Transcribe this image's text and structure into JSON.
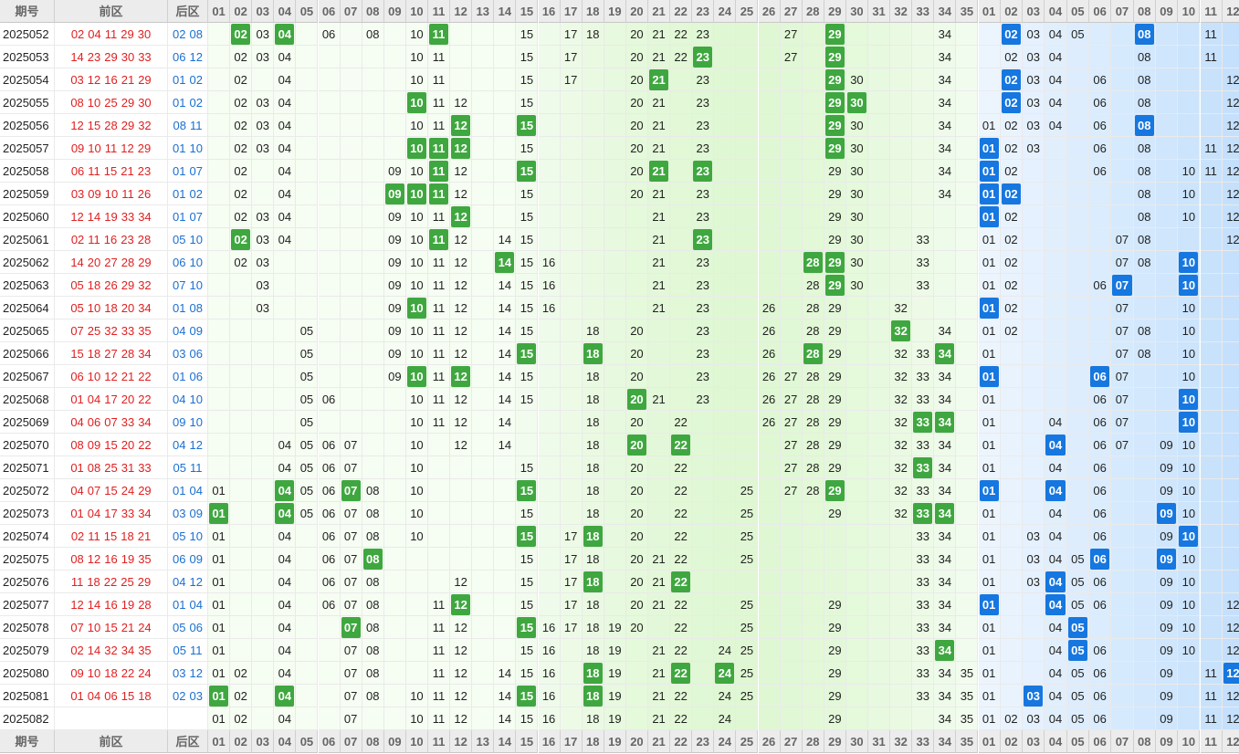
{
  "header": {
    "period_label": "期号",
    "front_label": "前区",
    "back_label": "后区",
    "front_nums": [
      "01",
      "02",
      "03",
      "04",
      "05",
      "06",
      "07",
      "08",
      "09",
      "10",
      "11",
      "12",
      "13",
      "14",
      "15",
      "16",
      "17",
      "18",
      "19",
      "20",
      "21",
      "22",
      "23",
      "24",
      "25",
      "26",
      "27",
      "28",
      "29",
      "30",
      "31",
      "32",
      "33",
      "34",
      "35"
    ],
    "back_nums": [
      "01",
      "02",
      "03",
      "04",
      "05",
      "06",
      "07",
      "08",
      "09",
      "10",
      "11",
      "12"
    ]
  },
  "colors": {
    "front_hit": "#3fa73f",
    "back_hit": "#1677e0",
    "front_text": "#e02020",
    "back_text": "#1a6fd0"
  },
  "rows": [
    {
      "period": "2025052",
      "front": [
        "02",
        "04",
        "11",
        "29",
        "30"
      ],
      "back": [
        "02",
        "08"
      ],
      "fshow": [
        "02",
        "03",
        "04",
        "06",
        "08",
        "10",
        "11",
        "15",
        "17",
        "18",
        "20",
        "21",
        "22",
        "23",
        "27",
        "29",
        "34"
      ],
      "bshow": [
        "02",
        "03",
        "04",
        "05",
        "08",
        "11"
      ]
    },
    {
      "period": "2025053",
      "front": [
        "14",
        "23",
        "29",
        "30",
        "33"
      ],
      "back": [
        "06",
        "12"
      ],
      "fshow": [
        "02",
        "03",
        "04",
        "10",
        "11",
        "15",
        "17",
        "20",
        "21",
        "22",
        "23",
        "27",
        "29",
        "34"
      ],
      "bshow": [
        "02",
        "03",
        "04",
        "08",
        "11"
      ]
    },
    {
      "period": "2025054",
      "front": [
        "03",
        "12",
        "16",
        "21",
        "29"
      ],
      "back": [
        "01",
        "02"
      ],
      "fshow": [
        "02",
        "04",
        "10",
        "11",
        "15",
        "17",
        "20",
        "21",
        "23",
        "29",
        "30",
        "34"
      ],
      "bshow": [
        "02",
        "03",
        "04",
        "06",
        "08",
        "12"
      ]
    },
    {
      "period": "2025055",
      "front": [
        "08",
        "10",
        "25",
        "29",
        "30"
      ],
      "back": [
        "01",
        "02"
      ],
      "fshow": [
        "02",
        "03",
        "04",
        "10",
        "11",
        "12",
        "15",
        "20",
        "21",
        "23",
        "29",
        "30",
        "34"
      ],
      "bshow": [
        "02",
        "03",
        "04",
        "06",
        "08",
        "12"
      ]
    },
    {
      "period": "2025056",
      "front": [
        "12",
        "15",
        "28",
        "29",
        "32"
      ],
      "back": [
        "08",
        "11"
      ],
      "fshow": [
        "02",
        "03",
        "04",
        "10",
        "11",
        "12",
        "15",
        "20",
        "21",
        "23",
        "29",
        "30",
        "34"
      ],
      "bshow": [
        "01",
        "02",
        "03",
        "04",
        "06",
        "08",
        "12"
      ]
    },
    {
      "period": "2025057",
      "front": [
        "09",
        "10",
        "11",
        "12",
        "29"
      ],
      "back": [
        "01",
        "10"
      ],
      "fshow": [
        "02",
        "03",
        "04",
        "10",
        "11",
        "12",
        "15",
        "20",
        "21",
        "23",
        "29",
        "30",
        "34"
      ],
      "bshow": [
        "01",
        "02",
        "03",
        "06",
        "08",
        "11",
        "12"
      ]
    },
    {
      "period": "2025058",
      "front": [
        "06",
        "11",
        "15",
        "21",
        "23"
      ],
      "back": [
        "01",
        "07"
      ],
      "fshow": [
        "02",
        "04",
        "09",
        "10",
        "11",
        "12",
        "15",
        "20",
        "21",
        "23",
        "29",
        "30",
        "34"
      ],
      "bshow": [
        "01",
        "02",
        "06",
        "08",
        "10",
        "11",
        "12"
      ]
    },
    {
      "period": "2025059",
      "front": [
        "03",
        "09",
        "10",
        "11",
        "26"
      ],
      "back": [
        "01",
        "02"
      ],
      "fshow": [
        "02",
        "04",
        "09",
        "10",
        "11",
        "12",
        "15",
        "20",
        "21",
        "23",
        "29",
        "30",
        "34"
      ],
      "bshow": [
        "01",
        "02",
        "08",
        "10",
        "12"
      ]
    },
    {
      "period": "2025060",
      "front": [
        "12",
        "14",
        "19",
        "33",
        "34"
      ],
      "back": [
        "01",
        "07"
      ],
      "fshow": [
        "02",
        "03",
        "04",
        "09",
        "10",
        "11",
        "12",
        "15",
        "21",
        "23",
        "29",
        "30"
      ],
      "bshow": [
        "01",
        "02",
        "08",
        "10",
        "12"
      ]
    },
    {
      "period": "2025061",
      "front": [
        "02",
        "11",
        "16",
        "23",
        "28"
      ],
      "back": [
        "05",
        "10"
      ],
      "fshow": [
        "02",
        "03",
        "04",
        "09",
        "10",
        "11",
        "12",
        "14",
        "15",
        "21",
        "23",
        "29",
        "30",
        "33"
      ],
      "bshow": [
        "01",
        "02",
        "07",
        "08",
        "12"
      ]
    },
    {
      "period": "2025062",
      "front": [
        "14",
        "20",
        "27",
        "28",
        "29"
      ],
      "back": [
        "06",
        "10"
      ],
      "fshow": [
        "02",
        "03",
        "09",
        "10",
        "11",
        "12",
        "14",
        "15",
        "16",
        "21",
        "23",
        "28",
        "29",
        "30",
        "33"
      ],
      "bshow": [
        "01",
        "02",
        "07",
        "08",
        "10"
      ]
    },
    {
      "period": "2025063",
      "front": [
        "05",
        "18",
        "26",
        "29",
        "32"
      ],
      "back": [
        "07",
        "10"
      ],
      "fshow": [
        "03",
        "09",
        "10",
        "11",
        "12",
        "14",
        "15",
        "16",
        "21",
        "23",
        "28",
        "29",
        "30",
        "33"
      ],
      "bshow": [
        "01",
        "02",
        "06",
        "07",
        "10"
      ]
    },
    {
      "period": "2025064",
      "front": [
        "05",
        "10",
        "18",
        "20",
        "34"
      ],
      "back": [
        "01",
        "08"
      ],
      "fshow": [
        "03",
        "09",
        "10",
        "11",
        "12",
        "14",
        "15",
        "16",
        "21",
        "23",
        "26",
        "28",
        "29",
        "32"
      ],
      "bshow": [
        "01",
        "02",
        "07",
        "10"
      ]
    },
    {
      "period": "2025065",
      "front": [
        "07",
        "25",
        "32",
        "33",
        "35"
      ],
      "back": [
        "04",
        "09"
      ],
      "fshow": [
        "05",
        "09",
        "10",
        "11",
        "12",
        "14",
        "15",
        "18",
        "20",
        "23",
        "26",
        "28",
        "29",
        "32",
        "34"
      ],
      "bshow": [
        "01",
        "02",
        "07",
        "08",
        "10"
      ]
    },
    {
      "period": "2025066",
      "front": [
        "15",
        "18",
        "27",
        "28",
        "34"
      ],
      "back": [
        "03",
        "06"
      ],
      "fshow": [
        "05",
        "09",
        "10",
        "11",
        "12",
        "14",
        "15",
        "18",
        "20",
        "23",
        "26",
        "28",
        "29",
        "32",
        "33",
        "34"
      ],
      "bshow": [
        "01",
        "07",
        "08",
        "10"
      ]
    },
    {
      "period": "2025067",
      "front": [
        "06",
        "10",
        "12",
        "21",
        "22"
      ],
      "back": [
        "01",
        "06"
      ],
      "fshow": [
        "05",
        "09",
        "10",
        "11",
        "12",
        "14",
        "15",
        "18",
        "20",
        "23",
        "26",
        "27",
        "28",
        "29",
        "32",
        "33",
        "34"
      ],
      "bshow": [
        "01",
        "06",
        "07",
        "10"
      ]
    },
    {
      "period": "2025068",
      "front": [
        "01",
        "04",
        "17",
        "20",
        "22"
      ],
      "back": [
        "04",
        "10"
      ],
      "fshow": [
        "05",
        "06",
        "10",
        "11",
        "12",
        "14",
        "15",
        "18",
        "20",
        "21",
        "23",
        "26",
        "27",
        "28",
        "29",
        "32",
        "33",
        "34"
      ],
      "bshow": [
        "01",
        "06",
        "07",
        "10"
      ]
    },
    {
      "period": "2025069",
      "front": [
        "04",
        "06",
        "07",
        "33",
        "34"
      ],
      "back": [
        "09",
        "10"
      ],
      "fshow": [
        "05",
        "10",
        "11",
        "12",
        "14",
        "18",
        "20",
        "22",
        "26",
        "27",
        "28",
        "29",
        "32",
        "33",
        "34"
      ],
      "bshow": [
        "01",
        "04",
        "06",
        "07",
        "10"
      ]
    },
    {
      "period": "2025070",
      "front": [
        "08",
        "09",
        "15",
        "20",
        "22"
      ],
      "back": [
        "04",
        "12"
      ],
      "fshow": [
        "04",
        "05",
        "06",
        "07",
        "10",
        "12",
        "14",
        "18",
        "20",
        "22",
        "27",
        "28",
        "29",
        "32",
        "33",
        "34"
      ],
      "bshow": [
        "01",
        "04",
        "06",
        "07",
        "09",
        "10"
      ]
    },
    {
      "period": "2025071",
      "front": [
        "01",
        "08",
        "25",
        "31",
        "33"
      ],
      "back": [
        "05",
        "11"
      ],
      "fshow": [
        "04",
        "05",
        "06",
        "07",
        "10",
        "15",
        "18",
        "20",
        "22",
        "27",
        "28",
        "29",
        "32",
        "33",
        "34"
      ],
      "bshow": [
        "01",
        "04",
        "06",
        "09",
        "10"
      ]
    },
    {
      "period": "2025072",
      "front": [
        "04",
        "07",
        "15",
        "24",
        "29"
      ],
      "back": [
        "01",
        "04"
      ],
      "fshow": [
        "01",
        "04",
        "05",
        "06",
        "07",
        "08",
        "10",
        "15",
        "18",
        "20",
        "22",
        "25",
        "27",
        "28",
        "29",
        "32",
        "33",
        "34"
      ],
      "bshow": [
        "01",
        "04",
        "06",
        "09",
        "10"
      ]
    },
    {
      "period": "2025073",
      "front": [
        "01",
        "04",
        "17",
        "33",
        "34"
      ],
      "back": [
        "03",
        "09"
      ],
      "fshow": [
        "01",
        "04",
        "05",
        "06",
        "07",
        "08",
        "10",
        "15",
        "18",
        "20",
        "22",
        "25",
        "29",
        "32",
        "33",
        "34"
      ],
      "bshow": [
        "01",
        "04",
        "06",
        "09",
        "10"
      ]
    },
    {
      "period": "2025074",
      "front": [
        "02",
        "11",
        "15",
        "18",
        "21"
      ],
      "back": [
        "05",
        "10"
      ],
      "fshow": [
        "01",
        "04",
        "06",
        "07",
        "08",
        "10",
        "15",
        "17",
        "18",
        "20",
        "22",
        "25",
        "33",
        "34"
      ],
      "bshow": [
        "01",
        "03",
        "04",
        "06",
        "09",
        "10"
      ]
    },
    {
      "period": "2025075",
      "front": [
        "08",
        "12",
        "16",
        "19",
        "35"
      ],
      "back": [
        "06",
        "09"
      ],
      "fshow": [
        "01",
        "04",
        "06",
        "07",
        "08",
        "15",
        "17",
        "18",
        "20",
        "21",
        "22",
        "25",
        "33",
        "34"
      ],
      "bshow": [
        "01",
        "03",
        "04",
        "05",
        "06",
        "09",
        "10"
      ]
    },
    {
      "period": "2025076",
      "front": [
        "11",
        "18",
        "22",
        "25",
        "29"
      ],
      "back": [
        "04",
        "12"
      ],
      "fshow": [
        "01",
        "04",
        "06",
        "07",
        "08",
        "12",
        "15",
        "17",
        "18",
        "20",
        "21",
        "22",
        "33",
        "34"
      ],
      "bshow": [
        "01",
        "03",
        "04",
        "05",
        "06",
        "09",
        "10"
      ]
    },
    {
      "period": "2025077",
      "front": [
        "12",
        "14",
        "16",
        "19",
        "28"
      ],
      "back": [
        "01",
        "04"
      ],
      "fshow": [
        "01",
        "04",
        "06",
        "07",
        "08",
        "11",
        "12",
        "15",
        "17",
        "18",
        "20",
        "21",
        "22",
        "25",
        "29",
        "33",
        "34"
      ],
      "bshow": [
        "01",
        "04",
        "05",
        "06",
        "09",
        "10",
        "12"
      ]
    },
    {
      "period": "2025078",
      "front": [
        "07",
        "10",
        "15",
        "21",
        "24"
      ],
      "back": [
        "05",
        "06"
      ],
      "fshow": [
        "01",
        "04",
        "07",
        "08",
        "11",
        "12",
        "15",
        "16",
        "17",
        "18",
        "19",
        "20",
        "22",
        "25",
        "29",
        "33",
        "34"
      ],
      "bshow": [
        "01",
        "04",
        "05",
        "09",
        "10",
        "12"
      ]
    },
    {
      "period": "2025079",
      "front": [
        "02",
        "14",
        "32",
        "34",
        "35"
      ],
      "back": [
        "05",
        "11"
      ],
      "fshow": [
        "01",
        "04",
        "07",
        "08",
        "11",
        "12",
        "15",
        "16",
        "18",
        "19",
        "21",
        "22",
        "24",
        "25",
        "29",
        "33",
        "34"
      ],
      "bshow": [
        "01",
        "04",
        "05",
        "06",
        "09",
        "10",
        "12"
      ]
    },
    {
      "period": "2025080",
      "front": [
        "09",
        "10",
        "18",
        "22",
        "24"
      ],
      "back": [
        "03",
        "12"
      ],
      "fshow": [
        "01",
        "02",
        "04",
        "07",
        "08",
        "11",
        "12",
        "14",
        "15",
        "16",
        "18",
        "19",
        "21",
        "22",
        "24",
        "25",
        "29",
        "33",
        "34",
        "35"
      ],
      "bshow": [
        "01",
        "04",
        "05",
        "06",
        "09",
        "11",
        "12"
      ]
    },
    {
      "period": "2025081",
      "front": [
        "01",
        "04",
        "06",
        "15",
        "18"
      ],
      "back": [
        "02",
        "03"
      ],
      "fshow": [
        "01",
        "02",
        "04",
        "07",
        "08",
        "10",
        "11",
        "12",
        "14",
        "15",
        "16",
        "18",
        "19",
        "21",
        "22",
        "24",
        "25",
        "29",
        "33",
        "34",
        "35"
      ],
      "bshow": [
        "01",
        "03",
        "04",
        "05",
        "06",
        "09",
        "11",
        "12"
      ]
    },
    {
      "period": "2025082",
      "front": [],
      "back": [],
      "fshow": [
        "01",
        "02",
        "04",
        "07",
        "10",
        "11",
        "12",
        "14",
        "15",
        "16",
        "18",
        "19",
        "21",
        "22",
        "24",
        "29",
        "34",
        "35"
      ],
      "bshow": [
        "01",
        "02",
        "03",
        "04",
        "05",
        "06",
        "09",
        "11",
        "12"
      ]
    }
  ],
  "hits_front": [
    [
      "02",
      "04",
      "11",
      "29"
    ],
    [
      "23",
      "29"
    ],
    [
      "21",
      "29"
    ],
    [
      "10",
      "29",
      "30"
    ],
    [
      "12",
      "15",
      "29"
    ],
    [
      "10",
      "11",
      "12",
      "29"
    ],
    [
      "11",
      "15",
      "21",
      "23"
    ],
    [
      "09",
      "10",
      "11"
    ],
    [
      "12"
    ],
    [
      "02",
      "11",
      "23"
    ],
    [
      "14",
      "28",
      "29"
    ],
    [
      "29"
    ],
    [
      "10"
    ],
    [
      "32"
    ],
    [
      "15",
      "18",
      "28",
      "34"
    ],
    [
      "10",
      "12"
    ],
    [
      "20"
    ],
    [
      "33",
      "34"
    ],
    [
      "20",
      "22"
    ],
    [
      "33"
    ],
    [
      "04",
      "07",
      "15",
      "29"
    ],
    [
      "01",
      "04",
      "33",
      "34"
    ],
    [
      "15",
      "18"
    ],
    [
      "08"
    ],
    [
      "18",
      "22"
    ],
    [
      "12"
    ],
    [
      "07",
      "15"
    ],
    [
      "34"
    ],
    [
      "18",
      "22",
      "24"
    ],
    [
      "01",
      "04",
      "15",
      "18"
    ],
    []
  ],
  "hits_back": [
    [
      "02",
      "08"
    ],
    [],
    [
      "02"
    ],
    [
      "02"
    ],
    [
      "08"
    ],
    [
      "01"
    ],
    [
      "01"
    ],
    [
      "01",
      "02"
    ],
    [
      "01"
    ],
    [],
    [
      "10"
    ],
    [
      "07",
      "10"
    ],
    [
      "01"
    ],
    [],
    [],
    [
      "01",
      "06"
    ],
    [
      "10"
    ],
    [
      "10"
    ],
    [
      "04"
    ],
    [],
    [
      "01",
      "04"
    ],
    [
      "09"
    ],
    [
      "10"
    ],
    [
      "06",
      "09"
    ],
    [
      "04"
    ],
    [
      "01",
      "04"
    ],
    [
      "05"
    ],
    [
      "05"
    ],
    [
      "12"
    ],
    [
      "03"
    ],
    []
  ]
}
